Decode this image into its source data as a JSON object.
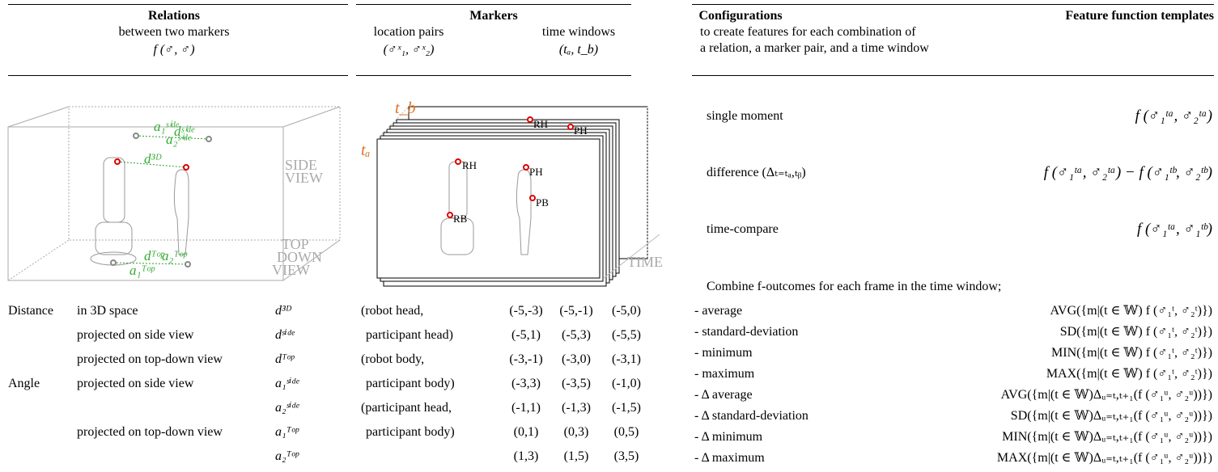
{
  "relations": {
    "title": "Relations",
    "subtitle": "between two markers",
    "formula": "f (♂, ♂)"
  },
  "markers": {
    "title": "Markers",
    "location_pairs": "location pairs",
    "location_formula": "(♂ˣ₁, ♂ˣ₂)",
    "time_windows": "time windows",
    "time_formula": "(tₐ, t_b)"
  },
  "configurations": {
    "title": "Configurations",
    "templates_title": "Feature function templates",
    "description": [
      "to create features for each combination of",
      "a relation, a marker pair, and a time window"
    ]
  },
  "left_diagram": {
    "side_view": [
      "SIDE",
      "VIEW"
    ],
    "top_view": [
      "TOP",
      "DOWN",
      "VIEW"
    ],
    "labels": [
      "d³ᴰ",
      "dˢⁱᵈᵉ",
      "a₁ˢⁱᵈᵉ",
      "a₂ˢⁱᵈᵉ",
      "dᵀᵒᵖ",
      "a₁ᵀᵒᵖ",
      "a₂ᵀᵒᵖ"
    ]
  },
  "middle_diagram": {
    "ta": "tₐ",
    "tb": "t_b",
    "time": "TIME",
    "markers": [
      "RH",
      "PH",
      "PB",
      "RB",
      "RH",
      "PH"
    ]
  },
  "relations_table": [
    [
      "Distance",
      "in 3D space",
      "d³ᴰ"
    ],
    [
      null,
      "projected on side view",
      "dˢⁱᵈᵉ"
    ],
    [
      null,
      "projected on top-down view",
      "dᵀᵒᵖ"
    ],
    [
      "Angle",
      "projected on side view",
      "a₁ˢⁱᵈᵉ"
    ],
    [
      null,
      null,
      "a₂ˢⁱᵈᵉ"
    ],
    [
      null,
      "projected on top-down view",
      "a₁ᵀᵒᵖ"
    ],
    [
      null,
      null,
      "a₂ᵀᵒᵖ"
    ]
  ],
  "marker_pairs": [
    "(robot head,",
    "participant head)",
    "(robot body,",
    "participant body)",
    "(participant head,",
    "participant body)"
  ],
  "time_windows": [
    [
      "(-5,-3)",
      "(-5,-1)",
      "(-5,0)"
    ],
    [
      "(-5,1)",
      "(-5,3)",
      "(-5,5)"
    ],
    [
      "(-3,-1)",
      "(-3,0)",
      "(-3,1)"
    ],
    [
      "(-3,3)",
      "(-3,5)",
      "(-1,0)"
    ],
    [
      "(-1,1)",
      "(-1,3)",
      "(-1,5)"
    ],
    [
      "(0,1)",
      "(0,3)",
      "(0,5)"
    ],
    [
      "(1,3)",
      "(1,5)",
      "(3,5)"
    ]
  ],
  "configs": [
    {
      "label": "single moment",
      "formula": "f (♂₁ᵗᵃ, ♂₂ᵗᵃ)"
    },
    {
      "label": "difference (Δₜ₌ₜₐ,ₜᵦ)",
      "formula": "f (♂₁ᵗᵃ, ♂₂ᵗᵃ) − f (♂₁ᵗᵇ, ♂₂ᵗᵇ)"
    },
    {
      "label": "time-compare",
      "formula": "f (♂₁ᵗᵃ, ♂₁ᵗᵇ)"
    }
  ],
  "combine_text": "Combine f-outcomes for each frame in the time window;",
  "aggregates": [
    {
      "label": "- average",
      "formula": "AVG({m|(t ∈ 𝕎) f (♂₁ᵗ, ♂₂ᵗ)})"
    },
    {
      "label": "- standard-deviation",
      "formula": "SD({m|(t ∈ 𝕎) f (♂₁ᵗ, ♂₂ᵗ)})"
    },
    {
      "label": "- minimum",
      "formula": "MIN({m|(t ∈ 𝕎) f (♂₁ᵗ, ♂₂ᵗ)})"
    },
    {
      "label": "- maximum",
      "formula": "MAX({m|(t ∈ 𝕎) f (♂₁ᵗ, ♂₂ᵗ)})"
    },
    {
      "label": "- Δ average",
      "formula": "AVG({m|(t ∈ 𝕎)Δᵤ₌ₜ,ₜ₊₁(f (♂₁ᵘ, ♂₂ᵘ))})"
    },
    {
      "label": "- Δ standard-deviation",
      "formula": "SD({m|(t ∈ 𝕎)Δᵤ₌ₜ,ₜ₊₁(f (♂₁ᵘ, ♂₂ᵘ))})"
    },
    {
      "label": "- Δ minimum",
      "formula": "MIN({m|(t ∈ 𝕎)Δᵤ₌ₜ,ₜ₊₁(f (♂₁ᵘ, ♂₂ᵘ))})"
    },
    {
      "label": "- Δ maximum",
      "formula": "MAX({m|(t ∈ 𝕎)Δᵤ₌ₜ,ₜ₊₁(f (♂₁ᵘ, ♂₂ᵘ))})"
    }
  ]
}
